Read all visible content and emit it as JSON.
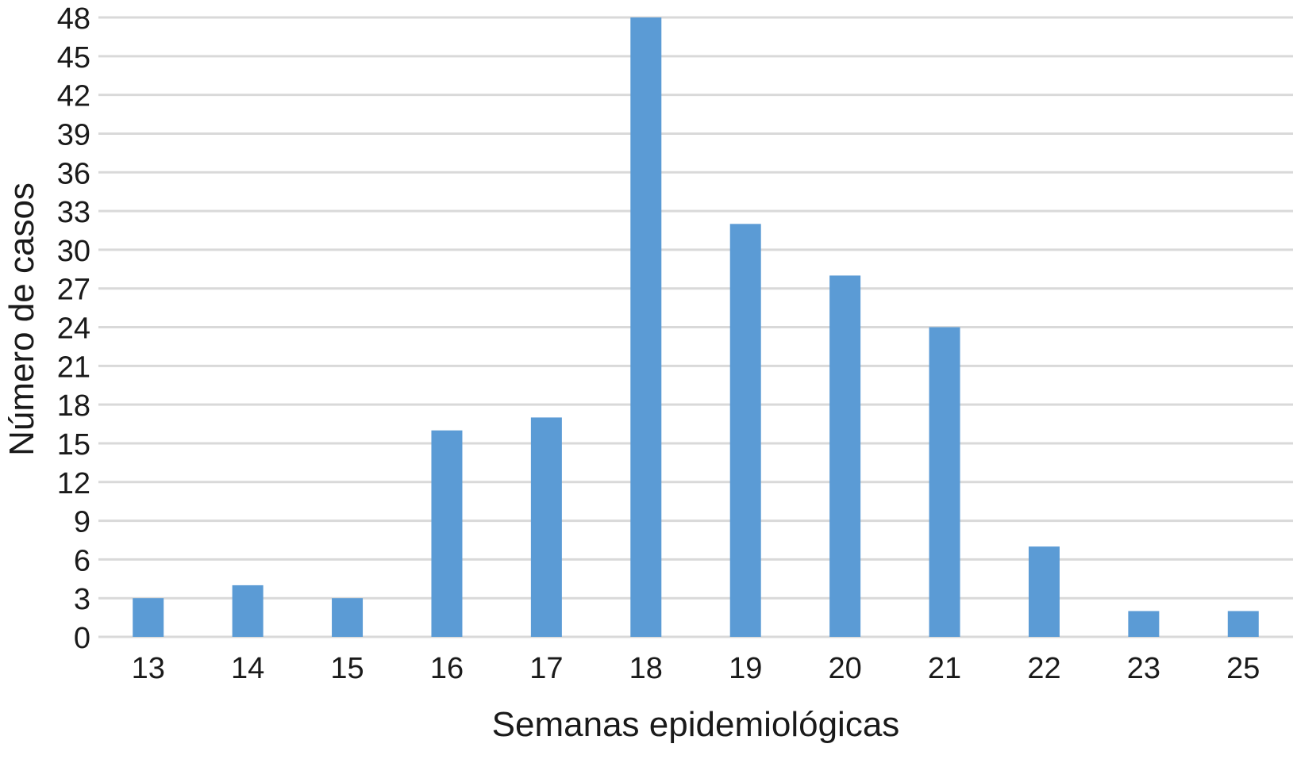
{
  "chart_data": {
    "type": "bar",
    "title": "",
    "xlabel": "Semanas epidemiológicas",
    "ylabel": "Número de casos",
    "categories": [
      "13",
      "14",
      "15",
      "16",
      "17",
      "18",
      "19",
      "20",
      "21",
      "22",
      "23",
      "25"
    ],
    "values": [
      3,
      4,
      3,
      16,
      17,
      48,
      32,
      28,
      24,
      7,
      2,
      2
    ],
    "ylim": [
      0,
      48
    ],
    "yticks": [
      0,
      3,
      6,
      9,
      12,
      15,
      18,
      21,
      24,
      27,
      30,
      33,
      36,
      39,
      42,
      45,
      48
    ],
    "grid": true,
    "legend": "none",
    "colors": {
      "bar": "#5b9bd5",
      "grid": "#d9d9d9",
      "text": "#1a1a1a"
    }
  }
}
